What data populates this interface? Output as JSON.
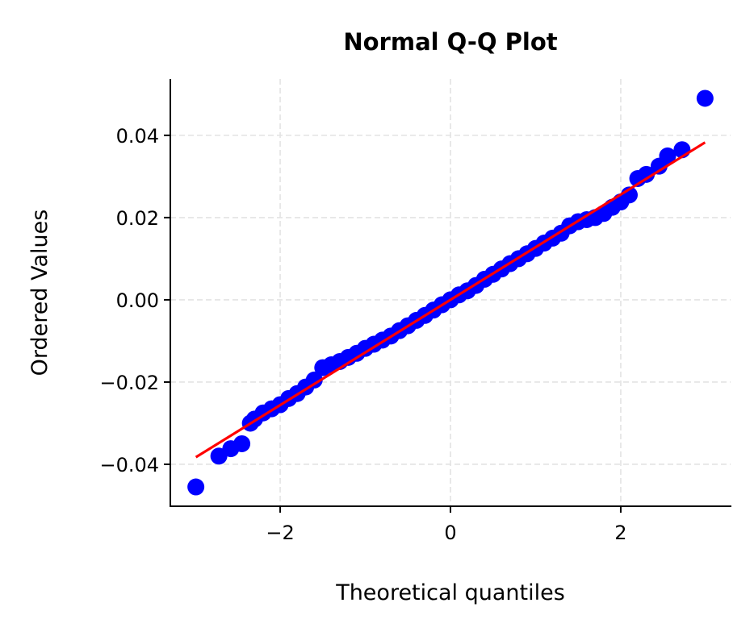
{
  "chart_data": {
    "type": "scatter",
    "title": "Normal Q-Q Plot",
    "xlabel": "Theoretical quantiles",
    "ylabel": "Ordered Values",
    "xlim": [
      -3.29,
      3.29
    ],
    "ylim": [
      -0.0502,
      0.0537
    ],
    "grid": true,
    "xticks": [
      -2,
      0,
      2
    ],
    "xtick_labels": [
      "−2",
      "0",
      "2"
    ],
    "yticks": [
      -0.04,
      -0.02,
      0.0,
      0.02,
      0.04
    ],
    "ytick_labels": [
      "−0.04",
      "−0.02",
      "0.00",
      "0.02",
      "0.04"
    ],
    "point_color": "#0000ff",
    "line_color": "#ff0000",
    "fit_line": {
      "slope": 0.0128,
      "intercept": 0.0,
      "x_range": [
        -2.99,
        2.99
      ]
    },
    "points": [
      [
        -2.99,
        -0.0455
      ],
      [
        -2.72,
        -0.038
      ],
      [
        -2.58,
        -0.0362
      ],
      [
        -2.45,
        -0.035
      ],
      [
        -2.35,
        -0.03
      ],
      [
        -2.3,
        -0.029
      ],
      [
        -2.2,
        -0.0275
      ],
      [
        -2.1,
        -0.0265
      ],
      [
        -2.0,
        -0.0255
      ],
      [
        -1.9,
        -0.024
      ],
      [
        -1.8,
        -0.0228
      ],
      [
        -1.7,
        -0.0212
      ],
      [
        -1.6,
        -0.0195
      ],
      [
        -1.5,
        -0.0165
      ],
      [
        -1.4,
        -0.0158
      ],
      [
        -1.3,
        -0.015
      ],
      [
        -1.2,
        -0.014
      ],
      [
        -1.1,
        -0.013
      ],
      [
        -1.0,
        -0.0118
      ],
      [
        -0.9,
        -0.0108
      ],
      [
        -0.8,
        -0.0098
      ],
      [
        -0.7,
        -0.0088
      ],
      [
        -0.6,
        -0.0075
      ],
      [
        -0.5,
        -0.0063
      ],
      [
        -0.4,
        -0.005
      ],
      [
        -0.3,
        -0.0038
      ],
      [
        -0.2,
        -0.0025
      ],
      [
        -0.1,
        -0.0012
      ],
      [
        0.0,
        0.0
      ],
      [
        0.1,
        0.0012
      ],
      [
        0.2,
        0.0022
      ],
      [
        0.3,
        0.0035
      ],
      [
        0.4,
        0.005
      ],
      [
        0.5,
        0.0062
      ],
      [
        0.6,
        0.0075
      ],
      [
        0.7,
        0.0088
      ],
      [
        0.8,
        0.01
      ],
      [
        0.9,
        0.0112
      ],
      [
        1.0,
        0.0125
      ],
      [
        1.1,
        0.0138
      ],
      [
        1.2,
        0.015
      ],
      [
        1.3,
        0.0162
      ],
      [
        1.4,
        0.018
      ],
      [
        1.5,
        0.019
      ],
      [
        1.6,
        0.0195
      ],
      [
        1.7,
        0.02
      ],
      [
        1.8,
        0.021
      ],
      [
        1.9,
        0.0225
      ],
      [
        2.0,
        0.0238
      ],
      [
        2.1,
        0.0255
      ],
      [
        2.2,
        0.0295
      ],
      [
        2.3,
        0.0305
      ],
      [
        2.45,
        0.0325
      ],
      [
        2.55,
        0.035
      ],
      [
        2.72,
        0.0365
      ],
      [
        2.99,
        0.049
      ]
    ]
  }
}
